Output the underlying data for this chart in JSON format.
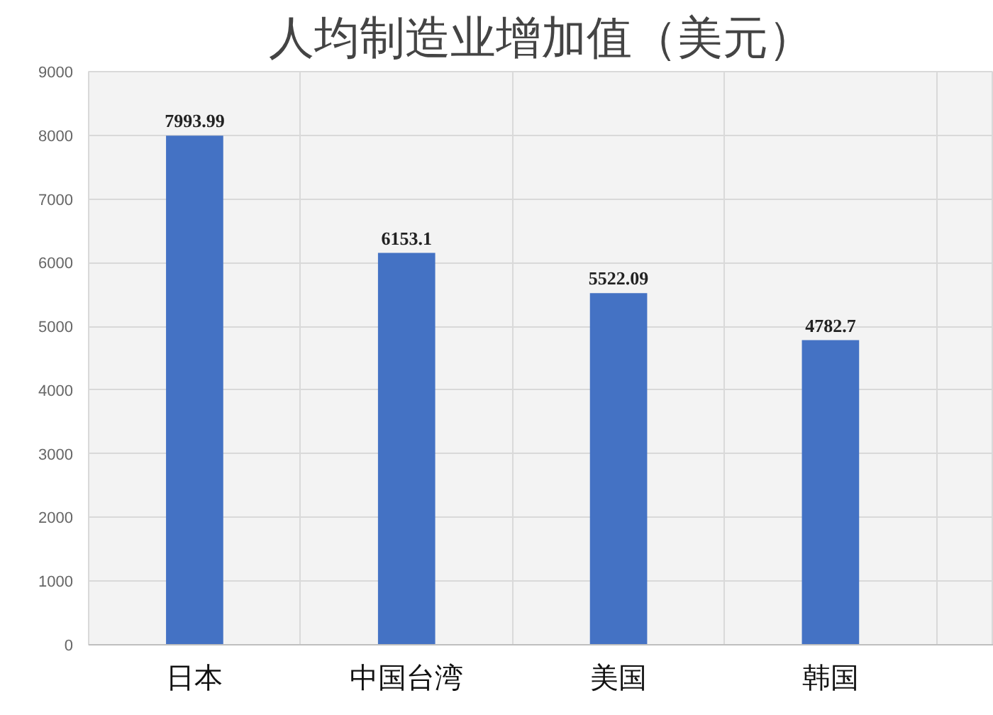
{
  "chart_data": {
    "type": "bar",
    "title": "人均制造业增加值（美元）",
    "categories": [
      "日本",
      "中国台湾",
      "美国",
      "韩国"
    ],
    "values": [
      7993.99,
      6153.1,
      5522.09,
      4782.7
    ],
    "color": "#4472c4",
    "ylim": [
      0,
      9000
    ],
    "yticks": [
      0,
      1000,
      2000,
      3000,
      4000,
      5000,
      6000,
      7000,
      8000,
      9000
    ],
    "grid": true,
    "data_labels": true
  }
}
